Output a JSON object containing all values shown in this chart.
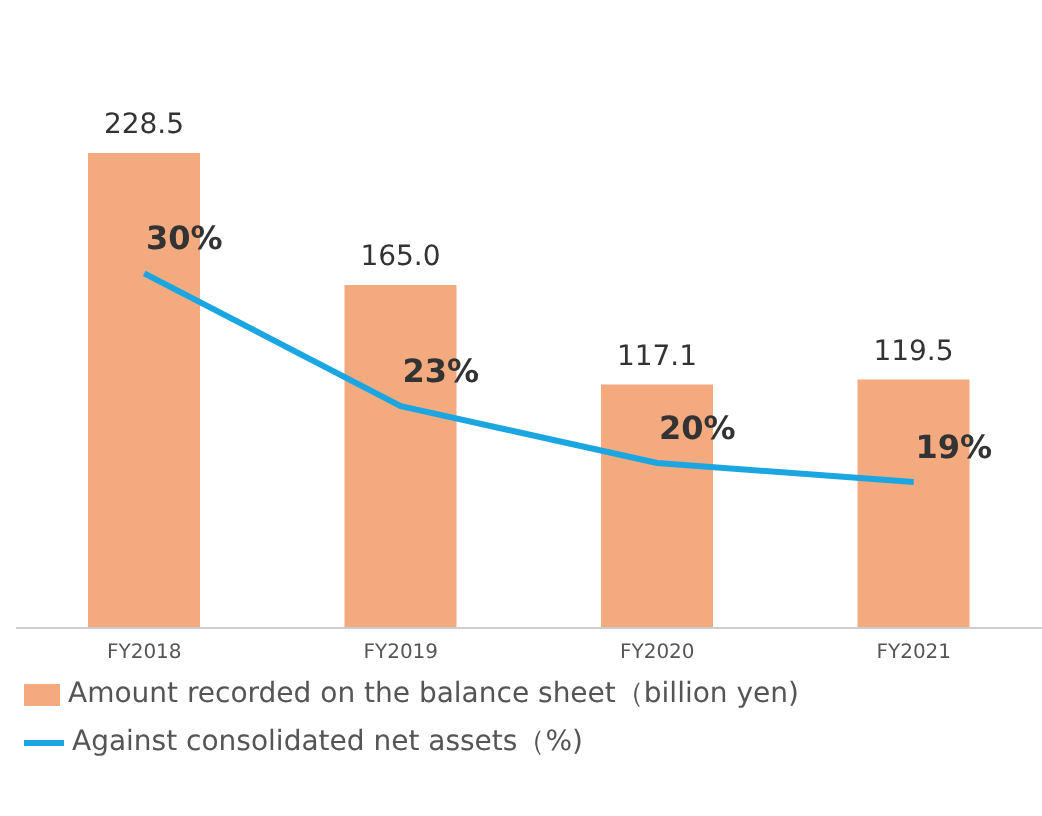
{
  "chart_data": {
    "type": "bar",
    "categories": [
      "FY2018",
      "FY2019",
      "FY2020",
      "FY2021"
    ],
    "series": [
      {
        "name": "Amount recorded on the balance sheet（billion yen)",
        "color": "#f2aa7e",
        "values": [
          228.5,
          165.0,
          117.1,
          119.5
        ],
        "value_labels": [
          "228.5",
          "165.0",
          "117.1",
          "119.5"
        ]
      },
      {
        "name": "Against consolidated net assets（%)",
        "type": "line",
        "axis": "y2",
        "color": "#1ba6e2",
        "values": [
          30,
          23,
          20,
          19
        ],
        "value_labels": [
          "30%",
          "23%",
          "20%",
          "19%"
        ]
      }
    ],
    "legend": "bottom left",
    "marker": "none",
    "line_style": "solid"
  }
}
